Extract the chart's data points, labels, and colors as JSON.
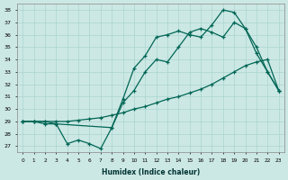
{
  "xlabel": "Humidex (Indice chaleur)",
  "bg_color": "#cce8e4",
  "grid_color": "#aad4d0",
  "line_color": "#006655",
  "xlim": [
    -0.5,
    23.5
  ],
  "ylim": [
    26.5,
    38.5
  ],
  "yticks": [
    27,
    28,
    29,
    30,
    31,
    32,
    33,
    34,
    35,
    36,
    37,
    38
  ],
  "xtick_labels": [
    "0",
    "1",
    "2",
    "3",
    "4",
    "5",
    "6",
    "7",
    "8",
    "9",
    "10",
    "11",
    "12",
    "13",
    "14",
    "15",
    "16",
    "17",
    "18",
    "19",
    "20",
    "21",
    "22",
    "23"
  ],
  "line1_x": [
    0,
    1,
    2,
    3,
    8,
    9,
    10,
    11,
    12,
    13,
    14,
    15,
    16,
    17,
    18,
    19,
    20,
    21,
    22,
    23
  ],
  "line1_y": [
    29,
    29,
    28.8,
    28.8,
    28.5,
    30.8,
    33.3,
    34.3,
    35.8,
    36.0,
    36.3,
    36.0,
    35.8,
    36.8,
    38.0,
    37.8,
    36.5,
    35.0,
    33.0,
    31.5
  ],
  "line2_x": [
    0,
    1,
    2,
    3,
    4,
    5,
    6,
    7,
    8,
    9,
    10,
    11,
    12,
    13,
    14,
    15,
    16,
    17,
    18,
    19,
    20,
    21,
    22,
    23
  ],
  "line2_y": [
    29,
    29,
    29,
    28.8,
    27.2,
    27.5,
    27.2,
    26.8,
    28.5,
    30.5,
    31.5,
    33.0,
    34.0,
    33.8,
    35.0,
    36.2,
    36.5,
    36.2,
    35.8,
    37.0,
    36.5,
    34.5,
    33.0,
    31.5
  ],
  "line3_x": [
    0,
    1,
    2,
    3,
    4,
    5,
    6,
    7,
    8,
    9,
    10,
    11,
    12,
    13,
    14,
    15,
    16,
    17,
    18,
    19,
    20,
    21,
    22,
    23
  ],
  "line3_y": [
    29,
    29,
    29,
    29,
    29,
    29.1,
    29.2,
    29.3,
    29.5,
    29.7,
    30.0,
    30.2,
    30.5,
    30.8,
    31.0,
    31.3,
    31.6,
    32.0,
    32.5,
    33.0,
    33.5,
    33.8,
    34.0,
    31.5
  ]
}
